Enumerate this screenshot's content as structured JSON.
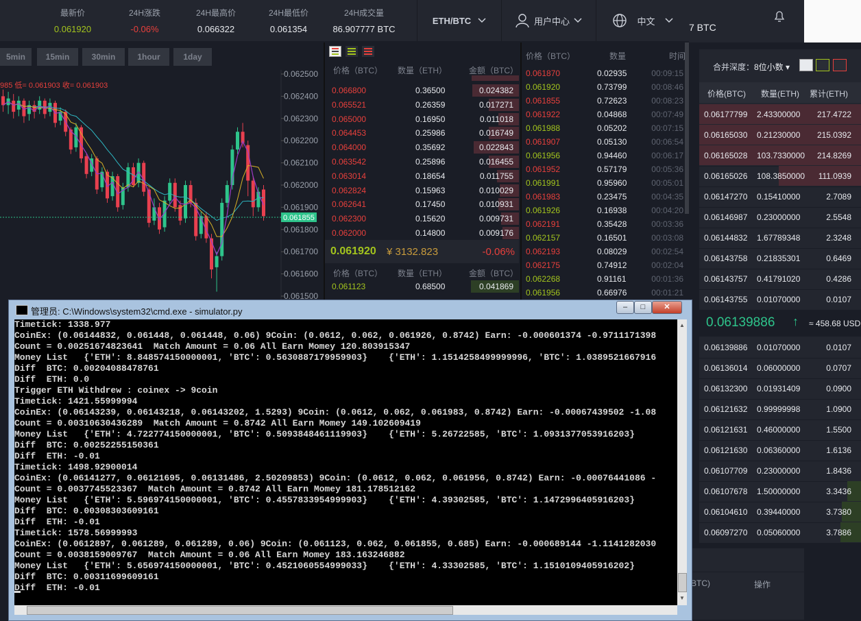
{
  "ticker": {
    "stats": [
      {
        "label": "最新价",
        "value": "0.061920",
        "color": "#a3c41d"
      },
      {
        "label": "24H涨跌",
        "value": "-0.06%",
        "color": "#e8403c"
      },
      {
        "label": "24H最高价",
        "value": "0.066322",
        "color": "#e8eaee"
      },
      {
        "label": "24H最低价",
        "value": "0.061354",
        "color": "#e8eaee"
      },
      {
        "label": "24H成交量",
        "value": "86.907777 BTC",
        "color": "#e8eaee"
      }
    ],
    "pair": "ETH/BTC",
    "user_center": "用户中心",
    "language": "中文",
    "partial_volume": "7 BTC"
  },
  "chart": {
    "timeframes": [
      "5min",
      "15min",
      "30min",
      "1hour",
      "1day"
    ],
    "info_text": "985  低= 0.061903  收= 0.061903",
    "price_labels": [
      "0.062500",
      "0.062400",
      "0.062300",
      "0.062200",
      "0.062100",
      "0.062000",
      "0.061900",
      "0.061800",
      "0.061700",
      "0.061600",
      "0.061500"
    ],
    "current_price_tag": "0.061855"
  },
  "chart_data": {
    "type": "candlestick",
    "ylim": [
      0.0615,
      0.0625
    ],
    "y_ticks": [
      0.0625,
      0.0624,
      0.0623,
      0.0622,
      0.0621,
      0.062,
      0.0619,
      0.0618,
      0.0617,
      0.0616,
      0.0615
    ],
    "current_price": 0.061855,
    "candles": [
      [
        0.0624,
        0.06236,
        0.06243,
        0.06233
      ],
      [
        0.06236,
        0.06239,
        0.06242,
        0.06232
      ],
      [
        0.06238,
        0.06233,
        0.06241,
        0.0623
      ],
      [
        0.06234,
        0.06238,
        0.0624,
        0.06231
      ],
      [
        0.06238,
        0.06231,
        0.06239,
        0.06228
      ],
      [
        0.06232,
        0.06236,
        0.06238,
        0.06229
      ],
      [
        0.06236,
        0.06233,
        0.06238,
        0.0623
      ],
      [
        0.06234,
        0.06238,
        0.0624,
        0.06232
      ],
      [
        0.06238,
        0.06232,
        0.06239,
        0.0623
      ],
      [
        0.06233,
        0.06237,
        0.06239,
        0.06231
      ],
      [
        0.06237,
        0.06228,
        0.06238,
        0.06226
      ],
      [
        0.06229,
        0.06233,
        0.06235,
        0.06227
      ],
      [
        0.06233,
        0.06224,
        0.06234,
        0.06222
      ],
      [
        0.06225,
        0.06216,
        0.06226,
        0.06214
      ],
      [
        0.06217,
        0.06226,
        0.06228,
        0.06215
      ],
      [
        0.06226,
        0.06212,
        0.06227,
        0.0621
      ],
      [
        0.06213,
        0.06205,
        0.06214,
        0.06203
      ],
      [
        0.06206,
        0.06212,
        0.06214,
        0.06204
      ],
      [
        0.06212,
        0.06198,
        0.06213,
        0.06196
      ],
      [
        0.06199,
        0.06206,
        0.06208,
        0.06197
      ],
      [
        0.06206,
        0.06194,
        0.06207,
        0.06192
      ],
      [
        0.06195,
        0.06204,
        0.06206,
        0.06193
      ],
      [
        0.06204,
        0.0619,
        0.06205,
        0.06188
      ],
      [
        0.06191,
        0.06199,
        0.06201,
        0.06189
      ],
      [
        0.06199,
        0.06208,
        0.0621,
        0.06197
      ],
      [
        0.06208,
        0.062,
        0.0621,
        0.06199
      ],
      [
        0.06201,
        0.0621,
        0.06212,
        0.06199
      ],
      [
        0.0621,
        0.06197,
        0.06211,
        0.06195
      ],
      [
        0.06198,
        0.06183,
        0.06199,
        0.06181
      ],
      [
        0.06184,
        0.0619,
        0.06194,
        0.06182
      ],
      [
        0.0619,
        0.0618,
        0.06192,
        0.06178
      ],
      [
        0.06181,
        0.06193,
        0.06195,
        0.06179
      ],
      [
        0.06193,
        0.06201,
        0.06203,
        0.06191
      ],
      [
        0.06201,
        0.0619,
        0.06203,
        0.06188
      ],
      [
        0.06191,
        0.06184,
        0.06193,
        0.06182
      ],
      [
        0.06185,
        0.062,
        0.06202,
        0.06183
      ],
      [
        0.062,
        0.06192,
        0.06202,
        0.0619
      ],
      [
        0.06192,
        0.06177,
        0.06194,
        0.06175
      ],
      [
        0.06178,
        0.06186,
        0.06188,
        0.06176
      ],
      [
        0.06186,
        0.06176,
        0.06188,
        0.06174
      ],
      [
        0.06176,
        0.06162,
        0.06178,
        0.06158
      ],
      [
        0.06163,
        0.06168,
        0.0617,
        0.06152
      ],
      [
        0.06168,
        0.06192,
        0.06194,
        0.06166
      ],
      [
        0.06192,
        0.062,
        0.06202,
        0.0619
      ],
      [
        0.062,
        0.06216,
        0.06218,
        0.06198
      ],
      [
        0.06216,
        0.06224,
        0.06226,
        0.06214
      ],
      [
        0.06224,
        0.06219,
        0.06228,
        0.06217
      ],
      [
        0.06218,
        0.06202,
        0.0622,
        0.06195
      ],
      [
        0.06202,
        0.0619,
        0.06204,
        0.06186
      ],
      [
        0.0619,
        0.06197,
        0.06199,
        0.06188
      ],
      [
        0.06198,
        0.06186,
        0.062,
        0.06184
      ]
    ]
  },
  "orderbook": {
    "headers": [
      "价格（BTC）",
      "数量（ETH）",
      "金额（BTC）"
    ],
    "asks": [
      [
        "0.066800",
        "0.36500",
        "0.024382"
      ],
      [
        "0.065521",
        "0.26359",
        "0.017271"
      ],
      [
        "0.065000",
        "0.16950",
        "0.011018"
      ],
      [
        "0.064453",
        "0.25986",
        "0.016749"
      ],
      [
        "0.064000",
        "0.35692",
        "0.022843"
      ],
      [
        "0.063542",
        "0.25896",
        "0.016455"
      ],
      [
        "0.063014",
        "0.18654",
        "0.011755"
      ],
      [
        "0.062824",
        "0.15963",
        "0.010029"
      ],
      [
        "0.062641",
        "0.17450",
        "0.010931"
      ],
      [
        "0.062300",
        "0.15620",
        "0.009731"
      ],
      [
        "0.062000",
        "0.14800",
        "0.009176"
      ]
    ],
    "last_price": "0.061920",
    "last_price_cny": "¥  3132.823",
    "last_change": "-0.06%",
    "bids": [
      [
        "0.061123",
        "0.68500",
        "0.041869"
      ]
    ]
  },
  "trades": {
    "headers": [
      "价格（BTC）",
      "数量",
      "时间"
    ],
    "rows": [
      [
        "0.061870",
        "0.02935",
        "00:09:15",
        "sell"
      ],
      [
        "0.061920",
        "0.73799",
        "00:08:46",
        "buy"
      ],
      [
        "0.061855",
        "0.72623",
        "00:08:23",
        "sell"
      ],
      [
        "0.061922",
        "0.04868",
        "00:07:49",
        "sell"
      ],
      [
        "0.061988",
        "0.05202",
        "00:07:15",
        "buy"
      ],
      [
        "0.061907",
        "0.05130",
        "00:06:54",
        "sell"
      ],
      [
        "0.061956",
        "0.94460",
        "00:06:17",
        "buy"
      ],
      [
        "0.061952",
        "0.57179",
        "00:05:36",
        "sell"
      ],
      [
        "0.061991",
        "0.95960",
        "00:05:01",
        "buy"
      ],
      [
        "0.061983",
        "0.23475",
        "00:04:35",
        "sell"
      ],
      [
        "0.061926",
        "0.16938",
        "00:04:20",
        "buy"
      ],
      [
        "0.062191",
        "0.35428",
        "00:03:36",
        "sell"
      ],
      [
        "0.062157",
        "0.16501",
        "00:03:08",
        "buy"
      ],
      [
        "0.062193",
        "0.08029",
        "00:02:54",
        "sell"
      ],
      [
        "0.062175",
        "0.74912",
        "00:02:04",
        "sell"
      ],
      [
        "0.062268",
        "0.91161",
        "00:01:36",
        "buy"
      ],
      [
        "0.061956",
        "0.66976",
        "00:01:21",
        "buy"
      ]
    ]
  },
  "depth": {
    "merge_label": "合并深度：",
    "merge_value": "8位小数",
    "headers": [
      "价格(BTC)",
      "数量(ETH)",
      "累计(ETH)"
    ],
    "asks": [
      [
        "0.06177799",
        "2.43300000",
        "217.4722"
      ],
      [
        "0.06165030",
        "0.21230000",
        "215.0392"
      ],
      [
        "0.06165028",
        "103.7330000",
        "214.8269"
      ],
      [
        "0.06165026",
        "108.3850000",
        "111.0939"
      ],
      [
        "0.06147270",
        "0.15410000",
        "2.7089"
      ],
      [
        "0.06146987",
        "0.23000000",
        "2.5548"
      ],
      [
        "0.06144832",
        "1.67789348",
        "2.3248"
      ],
      [
        "0.06143758",
        "0.21835301",
        "0.6469"
      ],
      [
        "0.06143757",
        "0.41791020",
        "0.4286"
      ],
      [
        "0.06143755",
        "0.01070000",
        "0.0107"
      ]
    ],
    "mid_price": "0.06139886",
    "mid_usd": "≈ 458.68 USD",
    "bids": [
      [
        "0.06139886",
        "0.01070000",
        "0.0107"
      ],
      [
        "0.06136014",
        "0.06000000",
        "0.0707"
      ],
      [
        "0.06132300",
        "0.01931409",
        "0.0900"
      ],
      [
        "0.06121632",
        "0.99999998",
        "1.0900"
      ],
      [
        "0.06121631",
        "0.46000000",
        "1.5500"
      ],
      [
        "0.06121630",
        "0.06360000",
        "1.6136"
      ],
      [
        "0.06107709",
        "0.23000000",
        "1.8436"
      ],
      [
        "0.06107678",
        "1.50000000",
        "3.3436"
      ],
      [
        "0.06104610",
        "0.39440000",
        "3.7380"
      ],
      [
        "0.06097270",
        "0.05060000",
        "3.7886"
      ]
    ],
    "bottom_col1": "BTC)",
    "bottom_col2": "操作"
  },
  "cmd": {
    "title": "管理员: C:\\Windows\\system32\\cmd.exe - simulator.py",
    "lines": [
      "Timetick: 1338.977",
      "CoinEx: (0.06144832, 0.061448, 0.061448, 0.06) 9Coin: (0.0612, 0.062, 0.061926, 0.8742) Earn: -0.000601374 -0.9711171398",
      "Count = 0.00251674823641  Match Amount = 0.06 All Earn Momey 120.803915347",
      "Money List   {'ETH': 8.848574150000001, 'BTC': 0.5630887179959903}    {'ETH': 1.1514258499999996, 'BTC': 1.0389521667916",
      "Diff  BTC: 0.00204088478761",
      "Diff  ETH: 0.0",
      "Trigger ETH Withdrew : coinex -> 9coin",
      "Timetick: 1421.55999994",
      "CoinEx: (0.06143239, 0.06143218, 0.06143202, 1.5293) 9Coin: (0.0612, 0.062, 0.061983, 0.8742) Earn: -0.00067439502 -1.08",
      "Count = 0.00310630436289  Match Amount = 0.8742 All Earn Momey 149.102609419",
      "Money List   {'ETH': 4.722774150000001, 'BTC': 0.5093848461119903}    {'ETH': 5.26722585, 'BTC': 1.0931377053916203}",
      "Diff  BTC: 0.00252255150361",
      "Diff  ETH: -0.01",
      "Timetick: 1498.92900014",
      "CoinEx: (0.06141277, 0.06121695, 0.06131486, 2.50209853) 9Coin: (0.0612, 0.062, 0.061956, 0.8742) Earn: -0.00076441086 -",
      "Count = 0.0037745523367  Match Amount = 0.8742 All Earn Momey 181.178512162",
      "Money List   {'ETH': 5.596974150000001, 'BTC': 0.4557833954999903}    {'ETH': 4.39302585, 'BTC': 1.1472996405916203}",
      "Diff  BTC: 0.00308303609161",
      "Diff  ETH: -0.01",
      "Timetick: 1578.56999993",
      "CoinEx: (0.0612897, 0.061289, 0.061289, 0.06) 9Coin: (0.061123, 0.062, 0.061855, 0.685) Earn: -0.000689144 -1.1141282030",
      "Count = 0.0038159009767  Match Amount = 0.06 All Earn Momey 183.163246882",
      "Money List   {'ETH': 5.656974150000001, 'BTC': 0.4521060554999033}    {'ETH': 4.33302585, 'BTC': 1.1510109405916202}",
      "Diff  BTC: 0.00311699609161",
      "Diff  ETH: -0.01",
      ""
    ]
  }
}
